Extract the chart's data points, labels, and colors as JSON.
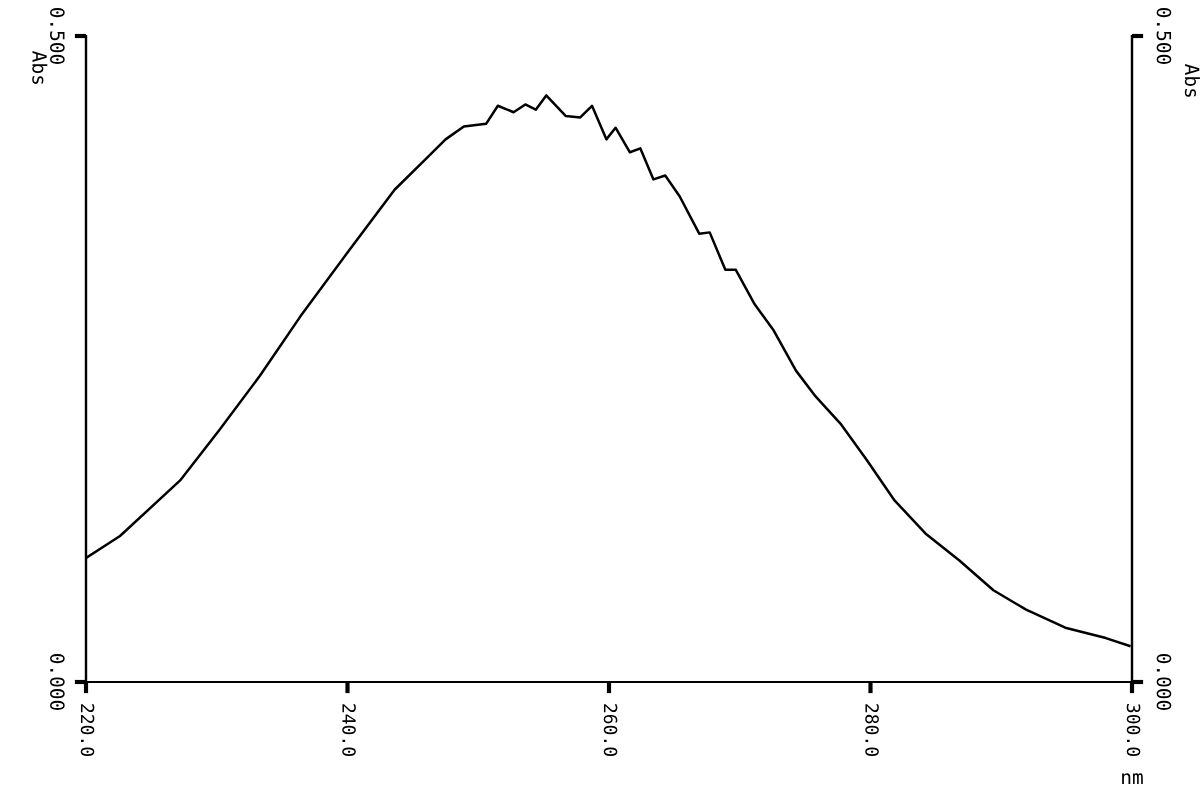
{
  "chart_data": {
    "type": "line",
    "xlabel": "nm",
    "ylabel": "Abs",
    "y2label": "Abs",
    "x": [
      220,
      222.6,
      227.2,
      230.2,
      233.3,
      236.4,
      239.9,
      243.6,
      245.9,
      247.5,
      248.9,
      250.6,
      251.5,
      252.7,
      253.6,
      254.4,
      255.2,
      256.7,
      257.8,
      258.7,
      259.8,
      260.5,
      261.6,
      262.4,
      263.4,
      264.3,
      265.4,
      266.9,
      267.7,
      268.9,
      269.7,
      271.1,
      272.6,
      274.3,
      275.8,
      277.7,
      279.7,
      281.8,
      284.2,
      286.8,
      289.4,
      291.9,
      294.9,
      298.0,
      299.8
    ],
    "series": [
      {
        "color": "#000000",
        "values": [
          0.096,
          0.113,
          0.156,
          0.195,
          0.237,
          0.283,
          0.331,
          0.381,
          0.404,
          0.42,
          0.43,
          0.432,
          0.446,
          0.441,
          0.447,
          0.443,
          0.454,
          0.438,
          0.437,
          0.446,
          0.42,
          0.429,
          0.41,
          0.413,
          0.389,
          0.392,
          0.376,
          0.347,
          0.348,
          0.319,
          0.319,
          0.293,
          0.272,
          0.241,
          0.221,
          0.2,
          0.172,
          0.141,
          0.115,
          0.094,
          0.071,
          0.056,
          0.042,
          0.034,
          0.028
        ]
      }
    ],
    "xlim": [
      220,
      300
    ],
    "xticks": [
      {
        "value": 220,
        "label": "220.0"
      },
      {
        "value": 240,
        "label": "240.0"
      },
      {
        "value": 260,
        "label": "260.0"
      },
      {
        "value": 280,
        "label": "280.0"
      },
      {
        "value": 300,
        "label": "300.0"
      }
    ],
    "ylim": [
      0,
      0.5
    ],
    "yticks": [
      {
        "value": 0,
        "label": "0.000"
      },
      {
        "value": 0.5,
        "label": "0.500"
      }
    ],
    "y2lim": [
      0,
      0.5
    ],
    "y2ticks": [
      {
        "value": 0,
        "label": "0.000"
      },
      {
        "value": 0.5,
        "label": "0.500"
      }
    ],
    "grid": false,
    "legend": false,
    "marker": "none",
    "line_style": "solid"
  }
}
